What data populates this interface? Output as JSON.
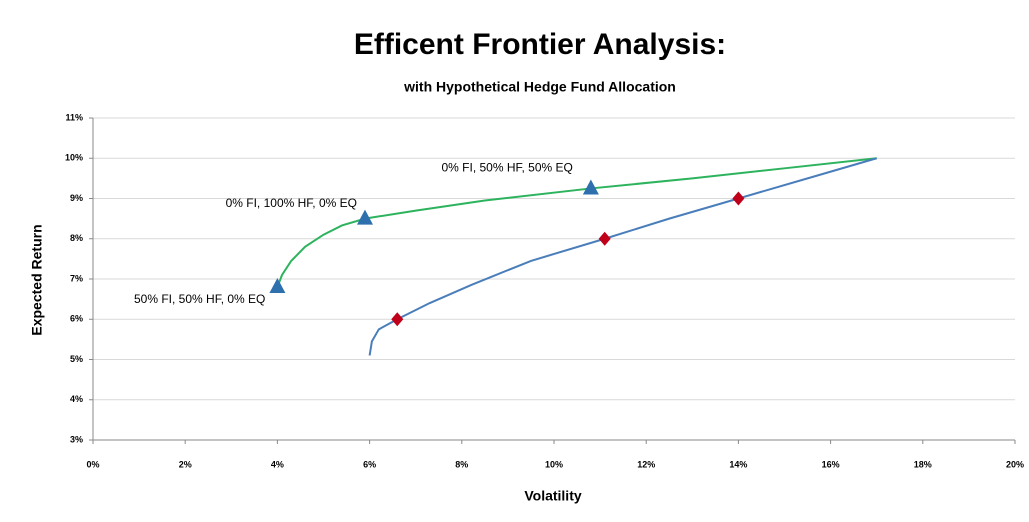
{
  "chart_data": {
    "type": "line",
    "title": "Efficent Frontier Analysis:",
    "subtitle": "with Hypothetical Hedge Fund Allocation",
    "x_label": "Volatility",
    "y_label": "Expected Return",
    "xlim": [
      0,
      20
    ],
    "ylim": [
      3,
      11
    ],
    "xticks": [
      {
        "value": 0,
        "label": "0%"
      },
      {
        "value": 2,
        "label": "2%"
      },
      {
        "value": 4,
        "label": "4%"
      },
      {
        "value": 6,
        "label": "6%"
      },
      {
        "value": 8,
        "label": "8%"
      },
      {
        "value": 10,
        "label": "10%"
      },
      {
        "value": 12,
        "label": "12%"
      },
      {
        "value": 14,
        "label": "14%"
      },
      {
        "value": 16,
        "label": "16%"
      },
      {
        "value": 18,
        "label": "18%"
      },
      {
        "value": 20,
        "label": "20%"
      }
    ],
    "yticks": [
      {
        "value": 3,
        "label": "3%"
      },
      {
        "value": 4,
        "label": "4%"
      },
      {
        "value": 5,
        "label": "5%"
      },
      {
        "value": 6,
        "label": "6%"
      },
      {
        "value": 7,
        "label": "7%"
      },
      {
        "value": 8,
        "label": "8%"
      },
      {
        "value": 9,
        "label": "9%"
      },
      {
        "value": 10,
        "label": "10%"
      },
      {
        "value": 11,
        "label": "11%"
      }
    ],
    "grid": true,
    "series": [
      {
        "color": "#2db35d",
        "mode": "line",
        "x": [
          4,
          4.1,
          4.3,
          4.6,
          5.0,
          5.4,
          5.9,
          7,
          8.5,
          10.8,
          13,
          15,
          17
        ],
        "values": [
          6.8,
          7.1,
          7.45,
          7.8,
          8.1,
          8.33,
          8.5,
          8.7,
          8.95,
          9.25,
          9.5,
          9.75,
          10
        ]
      },
      {
        "color": "#4a7ebb",
        "mode": "line",
        "x": [
          6,
          6.05,
          6.2,
          6.6,
          7.3,
          8.2,
          9.5,
          11.1,
          12.5,
          14,
          15.5,
          17
        ],
        "values": [
          5.1,
          5.45,
          5.75,
          6,
          6.4,
          6.85,
          7.45,
          8,
          8.5,
          9,
          9.5,
          10
        ]
      },
      {
        "color": "#2e6fae",
        "mode": "markers",
        "marker": "triangle",
        "x": [
          4,
          5.9,
          10.8
        ],
        "values": [
          6.8,
          8.5,
          9.25
        ]
      },
      {
        "color": "#c0001a",
        "mode": "markers",
        "marker": "diamond",
        "x": [
          6.6,
          11.1,
          14
        ],
        "values": [
          6,
          8,
          9
        ]
      }
    ],
    "annotations": [
      "50% FI, 50% HF, 0% EQ",
      "0% FI, 100% HF, 0% EQ",
      "0% FI, 50% HF, 50% EQ"
    ]
  }
}
